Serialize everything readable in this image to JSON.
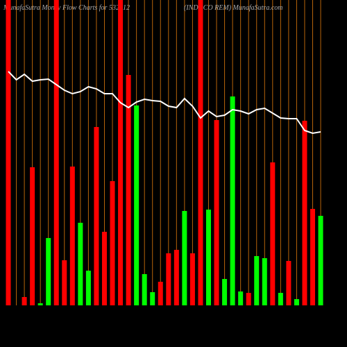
{
  "chart_data": {
    "type": "bar",
    "title": "MunafaSutra  Money Flow  Charts for 532612",
    "subtitle": "(INDOCO REM) MunafaSutra.com",
    "categories": [
      null,
      null,
      null,
      null,
      null,
      null,
      null,
      null,
      null,
      null,
      null,
      null,
      null,
      null,
      null,
      null,
      null,
      null,
      null,
      null,
      null,
      null,
      null,
      null,
      null,
      null,
      null,
      null,
      null,
      null,
      null,
      null,
      null,
      null,
      null,
      null,
      null,
      null,
      null,
      null
    ],
    "values": [
      440,
      0,
      12,
      199,
      3,
      97,
      440,
      65,
      200,
      119,
      50,
      257,
      106,
      179,
      440,
      332,
      288,
      45,
      19,
      34,
      75,
      80,
      136,
      75,
      440,
      138,
      267,
      38,
      301,
      20,
      18,
      71,
      68,
      206,
      18,
      64,
      9,
      266,
      139,
      129
    ],
    "colors": [
      "red",
      "red",
      "red",
      "red",
      "lime",
      "lime",
      "red",
      "red",
      "red",
      "lime",
      "lime",
      "red",
      "red",
      "red",
      "red",
      "red",
      "lime",
      "lime",
      "lime",
      "red",
      "red",
      "red",
      "lime",
      "red",
      "red",
      "lime",
      "red",
      "lime",
      "lime",
      "lime",
      "red",
      "lime",
      "lime",
      "red",
      "lime",
      "red",
      "lime",
      "red",
      "red",
      "lime"
    ],
    "line_values": [
      337,
      325,
      333,
      323,
      325,
      326,
      318,
      310,
      305,
      308,
      315,
      312,
      305,
      305,
      292,
      285,
      293,
      297,
      295,
      294,
      287,
      285,
      298,
      287,
      270,
      280,
      272,
      274,
      282,
      280,
      276,
      282,
      284,
      277,
      270,
      269,
      269,
      252,
      248,
      250
    ],
    "line_color": "#ffffff",
    "grid_color": "#b8650a",
    "ylim": [
      0,
      440
    ],
    "grid": true
  }
}
